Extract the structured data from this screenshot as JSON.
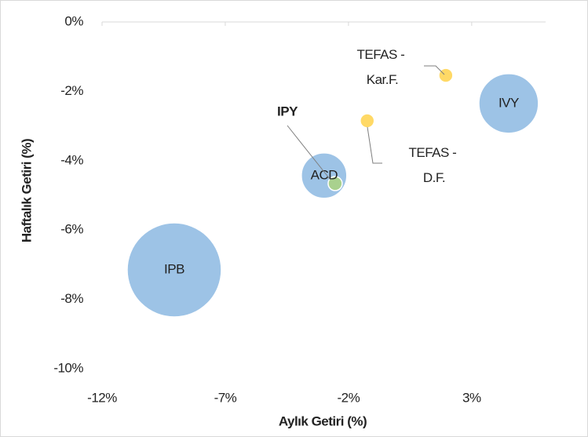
{
  "chart_data": {
    "type": "bubble",
    "x_label": "Aylık Getiri (%)",
    "y_label": "Haftalık Getiri (%)",
    "xlim": [
      -12,
      6
    ],
    "ylim": [
      -10,
      0
    ],
    "xticks": [
      {
        "value": -12,
        "label": "-12%"
      },
      {
        "value": -7,
        "label": "-7%"
      },
      {
        "value": -2,
        "label": "-2%"
      },
      {
        "value": 3,
        "label": "3%"
      }
    ],
    "yticks": [
      {
        "value": 0,
        "label": "0%"
      },
      {
        "value": -2,
        "label": "-2%"
      },
      {
        "value": -4,
        "label": "-4%"
      },
      {
        "value": -6,
        "label": "-6%"
      },
      {
        "value": -8,
        "label": "-8%"
      },
      {
        "value": -10,
        "label": "-10%"
      }
    ],
    "series": [
      {
        "name": "IPB",
        "color": "#9dc3e6",
        "x": -9.07,
        "y": -7.15,
        "size": 36
      },
      {
        "name": "ACD",
        "color": "#9dc3e6",
        "x": -2.99,
        "y": -4.43,
        "size": 8.4
      },
      {
        "name": "IPY",
        "color": "#a9d18e",
        "x": -2.54,
        "y": -4.66,
        "size": 0.8
      },
      {
        "name": "TEFAS - D.F.",
        "color": "#ffd966",
        "x": -1.24,
        "y": -2.85,
        "size": 0.8
      },
      {
        "name": "TEFAS - Kar.F.",
        "color": "#ffd966",
        "x": 1.95,
        "y": -1.54,
        "size": 0.8
      },
      {
        "name": "IVY",
        "color": "#9dc3e6",
        "x": 4.5,
        "y": -2.35,
        "size": 14.4
      }
    ]
  }
}
